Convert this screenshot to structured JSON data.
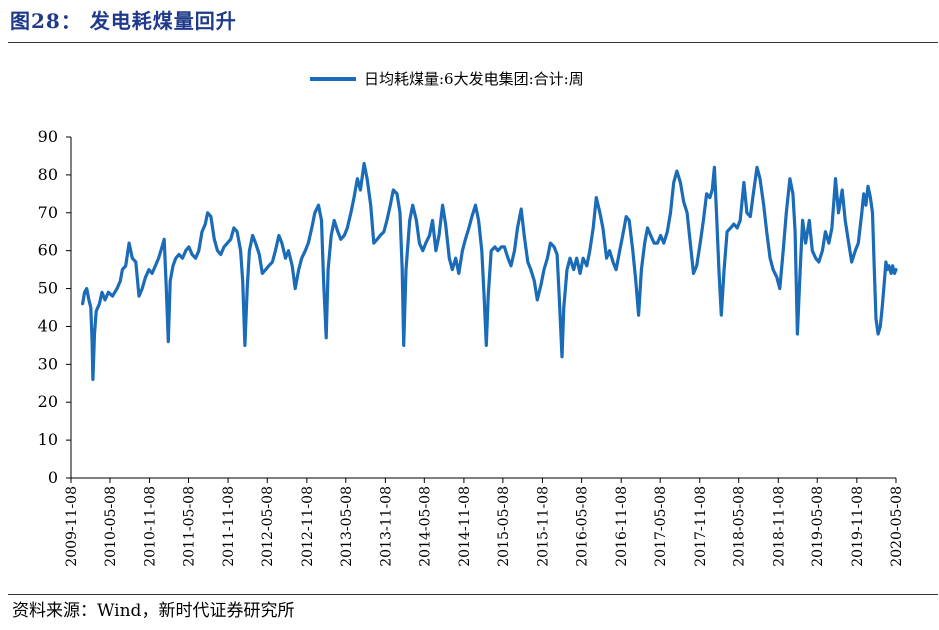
{
  "figure": {
    "title": "图28： 发电耗煤量回升",
    "source": "资料来源：Wind，新时代证券研究所"
  },
  "chart_data": {
    "type": "line",
    "title": "",
    "xlabel": "",
    "ylabel": "",
    "ylim": [
      0,
      90
    ],
    "yticks": [
      0,
      10,
      20,
      30,
      40,
      50,
      60,
      70,
      80,
      90
    ],
    "xlim": [
      "2009-11-08",
      "2020-05-08"
    ],
    "xticks": [
      "2009-11-08",
      "2010-05-08",
      "2010-11-08",
      "2011-05-08",
      "2011-11-08",
      "2012-05-08",
      "2012-11-08",
      "2013-05-08",
      "2013-11-08",
      "2014-05-08",
      "2014-11-08",
      "2015-05-08",
      "2015-11-08",
      "2016-05-08",
      "2016-11-08",
      "2017-05-08",
      "2017-11-08",
      "2018-05-08",
      "2018-11-08",
      "2019-05-08",
      "2019-11-08",
      "2020-05-08"
    ],
    "legend": "top-center",
    "grid": false,
    "series": [
      {
        "name": "日均耗煤量:6大发电集团:合计:周",
        "color": "#1a6bb8",
        "points": [
          [
            "2010-01-01",
            46
          ],
          [
            "2010-01-10",
            49
          ],
          [
            "2010-01-20",
            50
          ],
          [
            "2010-01-30",
            47
          ],
          [
            "2010-02-08",
            45
          ],
          [
            "2010-02-14",
            36
          ],
          [
            "2010-02-18",
            26
          ],
          [
            "2010-02-25",
            38
          ],
          [
            "2010-03-05",
            44
          ],
          [
            "2010-03-20",
            46
          ],
          [
            "2010-04-01",
            49
          ],
          [
            "2010-04-15",
            47
          ],
          [
            "2010-05-01",
            49
          ],
          [
            "2010-05-20",
            48
          ],
          [
            "2010-06-10",
            50
          ],
          [
            "2010-06-25",
            52
          ],
          [
            "2010-07-05",
            55
          ],
          [
            "2010-07-20",
            56
          ],
          [
            "2010-08-05",
            62
          ],
          [
            "2010-08-20",
            58
          ],
          [
            "2010-09-05",
            57
          ],
          [
            "2010-09-20",
            48
          ],
          [
            "2010-10-05",
            50
          ],
          [
            "2010-10-20",
            53
          ],
          [
            "2010-11-05",
            55
          ],
          [
            "2010-11-20",
            54
          ],
          [
            "2010-12-05",
            56
          ],
          [
            "2010-12-20",
            58
          ],
          [
            "2011-01-05",
            61
          ],
          [
            "2011-01-15",
            63
          ],
          [
            "2011-01-25",
            50
          ],
          [
            "2011-02-03",
            36
          ],
          [
            "2011-02-12",
            52
          ],
          [
            "2011-02-25",
            56
          ],
          [
            "2011-03-10",
            58
          ],
          [
            "2011-03-25",
            59
          ],
          [
            "2011-04-10",
            58
          ],
          [
            "2011-04-25",
            60
          ],
          [
            "2011-05-10",
            61
          ],
          [
            "2011-05-25",
            59
          ],
          [
            "2011-06-10",
            58
          ],
          [
            "2011-06-25",
            60
          ],
          [
            "2011-07-10",
            65
          ],
          [
            "2011-07-25",
            67
          ],
          [
            "2011-08-05",
            70
          ],
          [
            "2011-08-20",
            69
          ],
          [
            "2011-09-05",
            63
          ],
          [
            "2011-09-20",
            60
          ],
          [
            "2011-10-05",
            59
          ],
          [
            "2011-10-20",
            61
          ],
          [
            "2011-11-05",
            62
          ],
          [
            "2011-11-20",
            63
          ],
          [
            "2011-12-05",
            66
          ],
          [
            "2011-12-20",
            65
          ],
          [
            "2012-01-05",
            60
          ],
          [
            "2012-01-15",
            52
          ],
          [
            "2012-01-25",
            35
          ],
          [
            "2012-02-05",
            50
          ],
          [
            "2012-02-15",
            60
          ],
          [
            "2012-03-01",
            64
          ],
          [
            "2012-03-15",
            62
          ],
          [
            "2012-04-01",
            59
          ],
          [
            "2012-04-15",
            54
          ],
          [
            "2012-05-01",
            55
          ],
          [
            "2012-05-15",
            56
          ],
          [
            "2012-06-01",
            57
          ],
          [
            "2012-06-15",
            60
          ],
          [
            "2012-07-01",
            64
          ],
          [
            "2012-07-15",
            62
          ],
          [
            "2012-08-01",
            58
          ],
          [
            "2012-08-15",
            60
          ],
          [
            "2012-09-01",
            56
          ],
          [
            "2012-09-15",
            50
          ],
          [
            "2012-10-01",
            55
          ],
          [
            "2012-10-15",
            58
          ],
          [
            "2012-11-01",
            60
          ],
          [
            "2012-11-15",
            62
          ],
          [
            "2012-12-01",
            66
          ],
          [
            "2012-12-15",
            70
          ],
          [
            "2013-01-01",
            72
          ],
          [
            "2013-01-15",
            68
          ],
          [
            "2013-01-25",
            52
          ],
          [
            "2013-02-06",
            37
          ],
          [
            "2013-02-15",
            55
          ],
          [
            "2013-03-01",
            64
          ],
          [
            "2013-03-15",
            68
          ],
          [
            "2013-04-01",
            65
          ],
          [
            "2013-04-15",
            63
          ],
          [
            "2013-05-01",
            64
          ],
          [
            "2013-05-15",
            66
          ],
          [
            "2013-06-01",
            70
          ],
          [
            "2013-06-15",
            74
          ],
          [
            "2013-07-01",
            79
          ],
          [
            "2013-07-15",
            76
          ],
          [
            "2013-08-01",
            83
          ],
          [
            "2013-08-15",
            79
          ],
          [
            "2013-09-01",
            72
          ],
          [
            "2013-09-15",
            62
          ],
          [
            "2013-10-01",
            63
          ],
          [
            "2013-10-15",
            64
          ],
          [
            "2013-11-01",
            65
          ],
          [
            "2013-11-15",
            68
          ],
          [
            "2013-12-01",
            72
          ],
          [
            "2013-12-15",
            76
          ],
          [
            "2014-01-01",
            75
          ],
          [
            "2014-01-15",
            70
          ],
          [
            "2014-01-25",
            55
          ],
          [
            "2014-02-01",
            35
          ],
          [
            "2014-02-12",
            55
          ],
          [
            "2014-03-01",
            68
          ],
          [
            "2014-03-15",
            72
          ],
          [
            "2014-04-01",
            68
          ],
          [
            "2014-04-15",
            62
          ],
          [
            "2014-05-01",
            60
          ],
          [
            "2014-05-15",
            62
          ],
          [
            "2014-06-01",
            64
          ],
          [
            "2014-06-15",
            68
          ],
          [
            "2014-07-01",
            60
          ],
          [
            "2014-07-15",
            64
          ],
          [
            "2014-08-01",
            72
          ],
          [
            "2014-08-15",
            67
          ],
          [
            "2014-09-01",
            58
          ],
          [
            "2014-09-15",
            55
          ],
          [
            "2014-10-01",
            58
          ],
          [
            "2014-10-15",
            54
          ],
          [
            "2014-11-01",
            60
          ],
          [
            "2014-11-15",
            63
          ],
          [
            "2014-12-01",
            66
          ],
          [
            "2014-12-15",
            69
          ],
          [
            "2015-01-01",
            72
          ],
          [
            "2015-01-15",
            68
          ],
          [
            "2015-01-30",
            60
          ],
          [
            "2015-02-10",
            48
          ],
          [
            "2015-02-20",
            35
          ],
          [
            "2015-03-01",
            48
          ],
          [
            "2015-03-15",
            60
          ],
          [
            "2015-04-01",
            61
          ],
          [
            "2015-04-15",
            60
          ],
          [
            "2015-05-01",
            61
          ],
          [
            "2015-05-15",
            61
          ],
          [
            "2015-06-01",
            58
          ],
          [
            "2015-06-15",
            56
          ],
          [
            "2015-07-01",
            60
          ],
          [
            "2015-07-15",
            66
          ],
          [
            "2015-08-01",
            71
          ],
          [
            "2015-08-15",
            64
          ],
          [
            "2015-09-01",
            57
          ],
          [
            "2015-09-15",
            55
          ],
          [
            "2015-10-01",
            52
          ],
          [
            "2015-10-15",
            47
          ],
          [
            "2015-11-01",
            51
          ],
          [
            "2015-11-15",
            55
          ],
          [
            "2015-12-01",
            58
          ],
          [
            "2015-12-15",
            62
          ],
          [
            "2016-01-01",
            61
          ],
          [
            "2016-01-15",
            59
          ],
          [
            "2016-01-25",
            48
          ],
          [
            "2016-02-07",
            32
          ],
          [
            "2016-02-15",
            45
          ],
          [
            "2016-03-01",
            55
          ],
          [
            "2016-03-15",
            58
          ],
          [
            "2016-04-01",
            55
          ],
          [
            "2016-04-15",
            58
          ],
          [
            "2016-05-01",
            54
          ],
          [
            "2016-05-15",
            58
          ],
          [
            "2016-06-01",
            56
          ],
          [
            "2016-06-15",
            60
          ],
          [
            "2016-07-01",
            66
          ],
          [
            "2016-07-15",
            74
          ],
          [
            "2016-08-01",
            70
          ],
          [
            "2016-08-15",
            66
          ],
          [
            "2016-09-01",
            58
          ],
          [
            "2016-09-15",
            60
          ],
          [
            "2016-10-01",
            57
          ],
          [
            "2016-10-15",
            55
          ],
          [
            "2016-11-01",
            60
          ],
          [
            "2016-11-15",
            64
          ],
          [
            "2016-12-01",
            69
          ],
          [
            "2016-12-15",
            68
          ],
          [
            "2017-01-01",
            60
          ],
          [
            "2017-01-15",
            52
          ],
          [
            "2017-01-28",
            43
          ],
          [
            "2017-02-10",
            55
          ],
          [
            "2017-02-25",
            62
          ],
          [
            "2017-03-10",
            66
          ],
          [
            "2017-03-25",
            64
          ],
          [
            "2017-04-10",
            62
          ],
          [
            "2017-04-25",
            62
          ],
          [
            "2017-05-10",
            64
          ],
          [
            "2017-05-25",
            62
          ],
          [
            "2017-06-10",
            65
          ],
          [
            "2017-06-25",
            70
          ],
          [
            "2017-07-10",
            78
          ],
          [
            "2017-07-25",
            81
          ],
          [
            "2017-08-10",
            78
          ],
          [
            "2017-08-25",
            73
          ],
          [
            "2017-09-10",
            70
          ],
          [
            "2017-09-25",
            62
          ],
          [
            "2017-10-10",
            54
          ],
          [
            "2017-10-25",
            56
          ],
          [
            "2017-11-10",
            62
          ],
          [
            "2017-11-25",
            68
          ],
          [
            "2017-12-10",
            75
          ],
          [
            "2017-12-25",
            74
          ],
          [
            "2018-01-05",
            76
          ],
          [
            "2018-01-15",
            82
          ],
          [
            "2018-01-25",
            70
          ],
          [
            "2018-02-05",
            55
          ],
          [
            "2018-02-16",
            43
          ],
          [
            "2018-03-01",
            55
          ],
          [
            "2018-03-15",
            65
          ],
          [
            "2018-04-01",
            66
          ],
          [
            "2018-04-15",
            67
          ],
          [
            "2018-05-01",
            66
          ],
          [
            "2018-05-15",
            68
          ],
          [
            "2018-06-01",
            78
          ],
          [
            "2018-06-15",
            70
          ],
          [
            "2018-07-01",
            69
          ],
          [
            "2018-07-15",
            75
          ],
          [
            "2018-08-01",
            82
          ],
          [
            "2018-08-15",
            79
          ],
          [
            "2018-09-01",
            72
          ],
          [
            "2018-09-15",
            65
          ],
          [
            "2018-10-01",
            58
          ],
          [
            "2018-10-15",
            55
          ],
          [
            "2018-11-01",
            53
          ],
          [
            "2018-11-15",
            50
          ],
          [
            "2018-12-01",
            60
          ],
          [
            "2018-12-15",
            70
          ],
          [
            "2019-01-01",
            79
          ],
          [
            "2019-01-15",
            75
          ],
          [
            "2019-01-25",
            65
          ],
          [
            "2019-02-05",
            38
          ],
          [
            "2019-02-18",
            55
          ],
          [
            "2019-03-01",
            68
          ],
          [
            "2019-03-15",
            62
          ],
          [
            "2019-04-01",
            68
          ],
          [
            "2019-04-15",
            60
          ],
          [
            "2019-05-01",
            58
          ],
          [
            "2019-05-15",
            57
          ],
          [
            "2019-06-01",
            60
          ],
          [
            "2019-06-15",
            65
          ],
          [
            "2019-07-01",
            62
          ],
          [
            "2019-07-15",
            66
          ],
          [
            "2019-08-01",
            79
          ],
          [
            "2019-08-15",
            70
          ],
          [
            "2019-09-01",
            76
          ],
          [
            "2019-09-15",
            68
          ],
          [
            "2019-10-01",
            62
          ],
          [
            "2019-10-15",
            57
          ],
          [
            "2019-11-01",
            60
          ],
          [
            "2019-11-15",
            62
          ],
          [
            "2019-12-01",
            70
          ],
          [
            "2019-12-10",
            75
          ],
          [
            "2019-12-20",
            72
          ],
          [
            "2019-12-30",
            77
          ],
          [
            "2020-01-10",
            74
          ],
          [
            "2020-01-20",
            70
          ],
          [
            "2020-01-28",
            55
          ],
          [
            "2020-02-05",
            42
          ],
          [
            "2020-02-15",
            38
          ],
          [
            "2020-02-25",
            40
          ],
          [
            "2020-03-05",
            45
          ],
          [
            "2020-03-15",
            52
          ],
          [
            "2020-03-22",
            57
          ],
          [
            "2020-03-29",
            55
          ],
          [
            "2020-04-05",
            56
          ],
          [
            "2020-04-15",
            54
          ],
          [
            "2020-04-22",
            56
          ],
          [
            "2020-05-01",
            54
          ],
          [
            "2020-05-08",
            55
          ]
        ]
      }
    ]
  }
}
